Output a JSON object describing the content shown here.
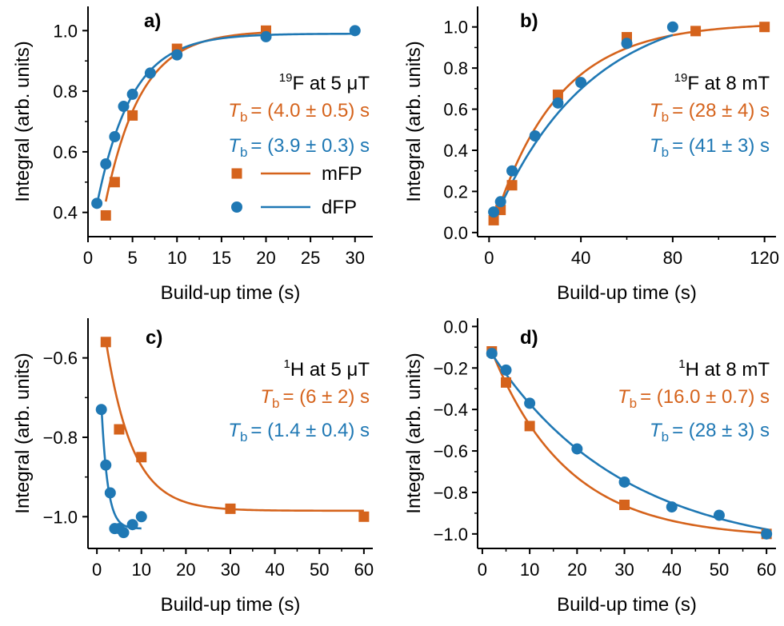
{
  "colors": {
    "mFP": "#d5631c",
    "dFP": "#1f78b4",
    "axis": "#000000"
  },
  "chart_data": [
    {
      "type": "scatter",
      "panel_label": "a)",
      "xlabel": "Build-up time (s)",
      "ylabel": "Integral (arb. units)",
      "xlim": [
        0,
        32
      ],
      "ylim": [
        0.32,
        1.08
      ],
      "xticks": [
        0,
        5,
        10,
        15,
        20,
        25,
        30
      ],
      "yticks": [
        0.4,
        0.6,
        0.8,
        1.0
      ],
      "ytick_decimals": 1,
      "nucleus_sup": "19",
      "nucleus_rest": "F at 5 μT",
      "legend": [
        "mFP",
        "dFP"
      ],
      "series": [
        {
          "name": "mFP",
          "marker": "square",
          "x": [
            2,
            3,
            5,
            10,
            20
          ],
          "y": [
            0.39,
            0.5,
            0.72,
            0.94,
            1.0
          ],
          "fit": {
            "A": 1.0,
            "B": -0.93,
            "T": 4.0,
            "x_range": [
              2,
              20
            ]
          },
          "tb_text": "= (4.0 ± 0.5) s"
        },
        {
          "name": "dFP",
          "marker": "circle",
          "x": [
            1,
            2,
            3,
            4,
            5,
            7,
            10,
            20,
            30
          ],
          "y": [
            0.43,
            0.56,
            0.65,
            0.75,
            0.79,
            0.86,
            0.92,
            0.98,
            1.0
          ],
          "fit": {
            "A": 0.99,
            "B": -0.73,
            "T": 3.9,
            "x_range": [
              1,
              30
            ]
          },
          "tb_text": "= (3.9 ± 0.3) s"
        }
      ]
    },
    {
      "type": "scatter",
      "panel_label": "b)",
      "xlabel": "Build-up time (s)",
      "ylabel": "Integral (arb. units)",
      "xlim": [
        -5,
        125
      ],
      "ylim": [
        -0.02,
        1.1
      ],
      "xticks": [
        0,
        40,
        80,
        120
      ],
      "yticks": [
        0.0,
        0.2,
        0.4,
        0.6,
        0.8,
        1.0
      ],
      "ytick_decimals": 1,
      "nucleus_sup": "19",
      "nucleus_rest": "F at 8 mT",
      "series": [
        {
          "name": "mFP",
          "marker": "square",
          "x": [
            2,
            5,
            10,
            30,
            60,
            90,
            120
          ],
          "y": [
            0.06,
            0.11,
            0.23,
            0.67,
            0.95,
            0.98,
            1.0
          ],
          "fit": {
            "A": 1.02,
            "B": -1.05,
            "T": 28,
            "x_range": [
              2,
              120
            ]
          },
          "tb_text": "= (28 ± 4) s"
        },
        {
          "name": "dFP",
          "marker": "circle",
          "x": [
            2,
            5,
            10,
            20,
            30,
            40,
            60,
            80
          ],
          "y": [
            0.1,
            0.15,
            0.3,
            0.47,
            0.63,
            0.73,
            0.92,
            1.0
          ],
          "fit": {
            "A": 1.12,
            "B": -1.12,
            "T": 41,
            "x_range": [
              2,
              80
            ]
          },
          "tb_text": "= (41 ± 3) s"
        }
      ]
    },
    {
      "type": "scatter",
      "panel_label": "c)",
      "xlabel": "Build-up time (s)",
      "ylabel": "Integral (arb. units)",
      "xlim": [
        -2,
        62
      ],
      "ylim": [
        -1.08,
        -0.5
      ],
      "xticks": [
        0,
        10,
        20,
        30,
        40,
        50,
        60
      ],
      "yticks": [
        -1.0,
        -0.8,
        -0.6
      ],
      "ytick_decimals": 1,
      "nucleus_sup": "1",
      "nucleus_rest": "H at 5 μT",
      "series": [
        {
          "name": "mFP",
          "marker": "square",
          "x": [
            2,
            5,
            10,
            30,
            60
          ],
          "y": [
            -0.56,
            -0.78,
            -0.85,
            -0.98,
            -1.0
          ],
          "fit": {
            "A": -0.985,
            "B": 0.6,
            "T": 6,
            "x_range": [
              2,
              60
            ]
          },
          "tb_text": "= (6 ± 2) s"
        },
        {
          "name": "dFP",
          "marker": "circle",
          "x": [
            1,
            2,
            3,
            4,
            5,
            6,
            8,
            10
          ],
          "y": [
            -0.73,
            -0.87,
            -0.94,
            -1.03,
            -1.03,
            -1.04,
            -1.02,
            -1.0
          ],
          "fit": {
            "A": -1.03,
            "B": 0.64,
            "T": 1.4,
            "x_range": [
              1,
              10
            ]
          },
          "tb_text": "= (1.4 ± 0.4) s"
        }
      ]
    },
    {
      "type": "scatter",
      "panel_label": "d)",
      "xlabel": "Build-up time (s)",
      "ylabel": "Integral (arb. units)",
      "xlim": [
        -1,
        62
      ],
      "ylim": [
        -1.07,
        0.04
      ],
      "xticks": [
        0,
        10,
        20,
        30,
        40,
        50,
        60
      ],
      "yticks": [
        -1.0,
        -0.8,
        -0.6,
        -0.4,
        -0.2,
        0.0
      ],
      "ytick_decimals": 1,
      "nucleus_sup": "1",
      "nucleus_rest": "H at 8 mT",
      "series": [
        {
          "name": "mFP",
          "marker": "square",
          "x": [
            2,
            5,
            10,
            30,
            60
          ],
          "y": [
            -0.12,
            -0.27,
            -0.48,
            -0.86,
            -1.0
          ],
          "fit": {
            "A": -1.02,
            "B": 1.02,
            "T": 16,
            "x_range": [
              2,
              60
            ]
          },
          "tb_text": "= (16.0 ± 0.7) s"
        },
        {
          "name": "dFP",
          "marker": "circle",
          "x": [
            2,
            5,
            10,
            20,
            30,
            40,
            50,
            60
          ],
          "y": [
            -0.13,
            -0.21,
            -0.37,
            -0.59,
            -0.75,
            -0.87,
            -0.91,
            -1.0
          ],
          "fit": {
            "A": -1.1,
            "B": 1.04,
            "T": 28,
            "x_range": [
              2,
              60
            ]
          },
          "tb_text": "= (28 ± 3) s"
        }
      ]
    }
  ]
}
